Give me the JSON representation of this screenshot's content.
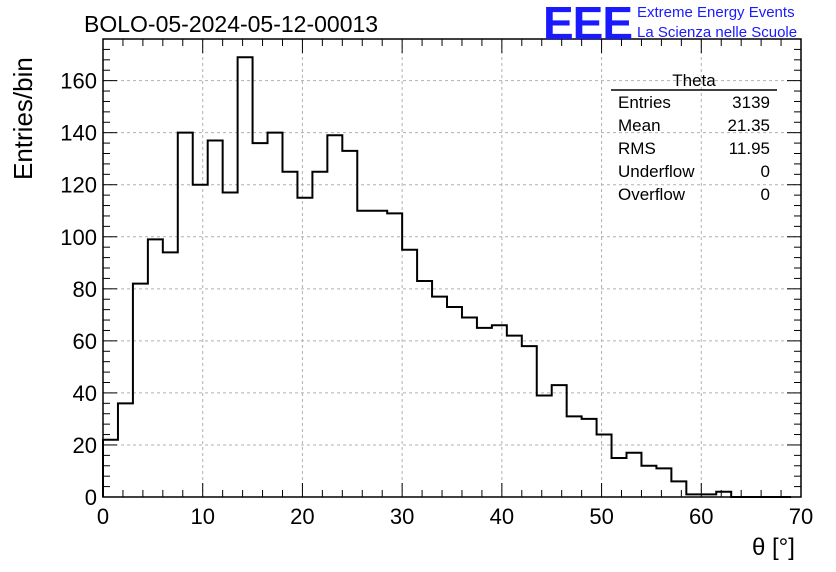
{
  "title": "BOLO-05-2024-05-12-00013",
  "logo": {
    "mark": "EEE",
    "line1": "Extreme Energy Events",
    "line2": "La Scienza nelle Scuole",
    "color": "#1a1aff"
  },
  "stats": {
    "name": "Theta",
    "rows": [
      {
        "key": "Entries",
        "value": "3139"
      },
      {
        "key": "Mean",
        "value": "21.35"
      },
      {
        "key": "RMS",
        "value": "11.95"
      },
      {
        "key": "Underflow",
        "value": "0"
      },
      {
        "key": "Overflow",
        "value": "0"
      }
    ]
  },
  "chart_data": {
    "type": "bar",
    "title": "BOLO-05-2024-05-12-00013",
    "xlabel": "θ [°]",
    "ylabel": "Entries/bin",
    "xlim": [
      0,
      70
    ],
    "ylim": [
      0,
      176
    ],
    "grid": true,
    "xticks": [
      0,
      10,
      20,
      30,
      40,
      50,
      60,
      70
    ],
    "yticks": [
      0,
      20,
      40,
      60,
      80,
      100,
      120,
      140,
      160
    ],
    "bin_width": 1.5,
    "bin_edges_start": 0,
    "values": [
      22,
      36,
      82,
      99,
      94,
      140,
      120,
      137,
      117,
      169,
      136,
      140,
      125,
      115,
      125,
      139,
      133,
      110,
      110,
      109,
      95,
      83,
      77,
      73,
      69,
      65,
      66,
      62,
      58,
      39,
      43,
      31,
      30,
      24,
      15,
      17,
      12,
      11,
      6,
      1,
      1,
      2,
      0,
      0,
      0,
      0
    ]
  }
}
